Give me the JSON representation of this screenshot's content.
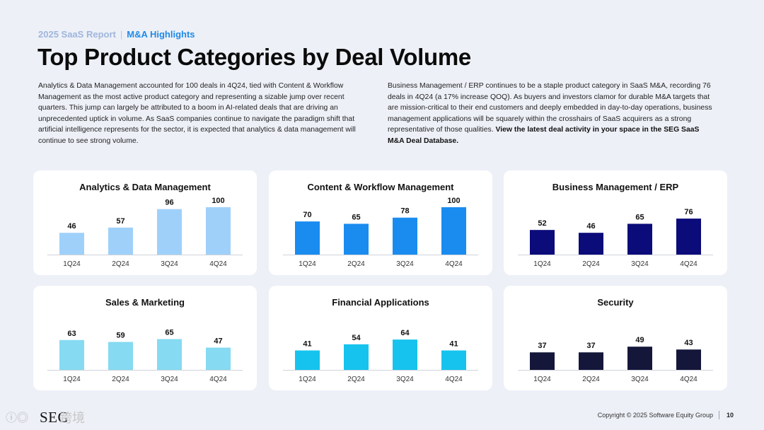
{
  "header": {
    "report": "2025 SaaS Report",
    "separator": "|",
    "section": "M&A Highlights",
    "title": "Top Product Categories by Deal Volume"
  },
  "paragraphs": {
    "left": "Analytics & Data Management accounted for 100 deals in 4Q24, tied with Content & Workflow Management as the most active product category and representing a sizable jump over recent quarters. This jump can largely be attributed to a boom in AI-related deals that are driving an unprecedented uptick in volume. As SaaS companies continue to navigate the paradigm shift that artificial intelligence represents for the sector, it is expected that analytics & data management will continue to see strong volume.",
    "right": "Business Management / ERP continues to be a staple product category in SaaS M&A, recording 76 deals in 4Q24 (a 17% increase QOQ). As buyers and investors clamor for durable M&A targets that are mission-critical to their end customers and deeply embedded in day-to-day operations, business management applications will be squarely within the crosshairs of SaaS acquirers as a strong representative of those qualities.",
    "right_bold": "View the latest deal activity in your space in the SEG SaaS M&A Deal Database."
  },
  "chart_data": [
    {
      "type": "bar",
      "title": "Analytics & Data Management",
      "categories": [
        "1Q24",
        "2Q24",
        "3Q24",
        "4Q24"
      ],
      "values": [
        46,
        57,
        96,
        100
      ],
      "ylim": [
        0,
        100
      ],
      "color": "#9fd0fa"
    },
    {
      "type": "bar",
      "title": "Content & Workflow Management",
      "categories": [
        "1Q24",
        "2Q24",
        "3Q24",
        "4Q24"
      ],
      "values": [
        70,
        65,
        78,
        100
      ],
      "ylim": [
        0,
        100
      ],
      "color": "#1a8cf0"
    },
    {
      "type": "bar",
      "title": "Business Management / ERP",
      "categories": [
        "1Q24",
        "2Q24",
        "3Q24",
        "4Q24"
      ],
      "values": [
        52,
        46,
        65,
        76
      ],
      "ylim": [
        0,
        100
      ],
      "color": "#0b0b7a"
    },
    {
      "type": "bar",
      "title": "Sales & Marketing",
      "categories": [
        "1Q24",
        "2Q24",
        "3Q24",
        "4Q24"
      ],
      "values": [
        63,
        59,
        65,
        47
      ],
      "ylim": [
        0,
        100
      ],
      "color": "#86daf2"
    },
    {
      "type": "bar",
      "title": "Financial Applications",
      "categories": [
        "1Q24",
        "2Q24",
        "3Q24",
        "4Q24"
      ],
      "values": [
        41,
        54,
        64,
        41
      ],
      "ylim": [
        0,
        100
      ],
      "color": "#16c3ee"
    },
    {
      "type": "bar",
      "title": "Security",
      "categories": [
        "1Q24",
        "2Q24",
        "3Q24",
        "4Q24"
      ],
      "values": [
        37,
        37,
        49,
        43
      ],
      "ylim": [
        0,
        100
      ],
      "color": "#15173a"
    }
  ],
  "footer": {
    "logo": "SEG",
    "watermark_mark": "ⓘ◎",
    "watermark": "跨境",
    "copyright": "Copyright © 2025 Software Equity Group",
    "page": "10"
  }
}
